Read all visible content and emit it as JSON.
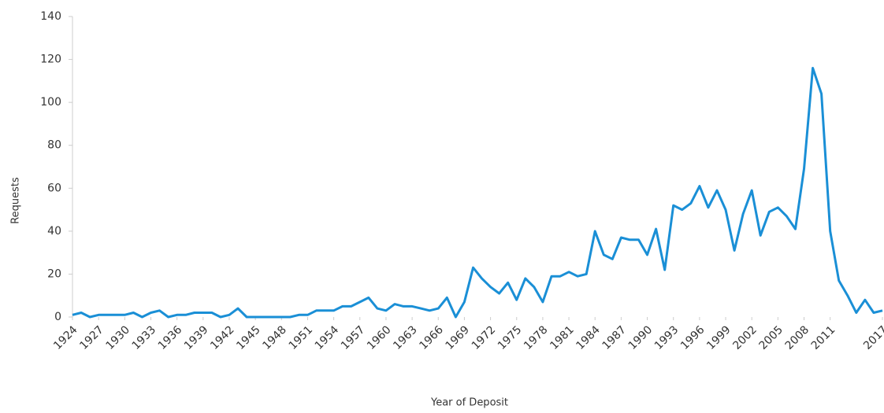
{
  "chart_data": {
    "type": "line",
    "xlabel": "Year of Deposit",
    "ylabel": "Requests",
    "x": [
      1924,
      1925,
      1926,
      1927,
      1928,
      1929,
      1930,
      1931,
      1932,
      1933,
      1934,
      1935,
      1936,
      1937,
      1938,
      1939,
      1940,
      1941,
      1942,
      1943,
      1944,
      1945,
      1946,
      1947,
      1948,
      1949,
      1950,
      1951,
      1952,
      1953,
      1954,
      1955,
      1956,
      1957,
      1958,
      1959,
      1960,
      1961,
      1962,
      1963,
      1964,
      1965,
      1966,
      1967,
      1968,
      1969,
      1970,
      1971,
      1972,
      1973,
      1974,
      1975,
      1976,
      1977,
      1978,
      1979,
      1980,
      1981,
      1982,
      1983,
      1984,
      1985,
      1986,
      1987,
      1988,
      1989,
      1990,
      1991,
      1992,
      1993,
      1994,
      1995,
      1996,
      1997,
      1998,
      1999,
      2000,
      2001,
      2002,
      2003,
      2004,
      2005,
      2006,
      2007,
      2008,
      2009,
      2010,
      2011,
      2012,
      2013,
      2014,
      2015,
      2016,
      2017
    ],
    "series": [
      {
        "name": "Requests",
        "color": "#1a8fd6",
        "values": [
          1,
          2,
          0,
          1,
          1,
          1,
          1,
          2,
          0,
          2,
          3,
          0,
          1,
          1,
          2,
          2,
          2,
          0,
          1,
          4,
          0,
          0,
          0,
          0,
          0,
          0,
          1,
          1,
          3,
          3,
          3,
          5,
          5,
          7,
          9,
          4,
          3,
          6,
          5,
          5,
          4,
          3,
          4,
          9,
          0,
          7,
          23,
          18,
          14,
          11,
          16,
          8,
          18,
          14,
          7,
          19,
          19,
          21,
          19,
          20,
          40,
          29,
          27,
          37,
          36,
          36,
          29,
          41,
          22,
          52,
          50,
          53,
          61,
          51,
          59,
          50,
          31,
          48,
          59,
          38,
          49,
          51,
          47,
          41,
          69,
          116,
          104,
          40,
          17,
          10,
          2,
          8,
          2,
          3
        ]
      }
    ],
    "xlim": [
      1924,
      2017
    ],
    "xticks": [
      1924,
      1927,
      1930,
      1933,
      1936,
      1939,
      1942,
      1945,
      1948,
      1951,
      1954,
      1957,
      1960,
      1963,
      1966,
      1969,
      1972,
      1975,
      1978,
      1981,
      1984,
      1987,
      1990,
      1993,
      1996,
      1999,
      2002,
      2005,
      2008,
      2011,
      2017
    ],
    "ylim": [
      0,
      140
    ],
    "yticks": [
      0,
      20,
      40,
      60,
      80,
      100,
      120,
      140
    ],
    "grid": false
  }
}
